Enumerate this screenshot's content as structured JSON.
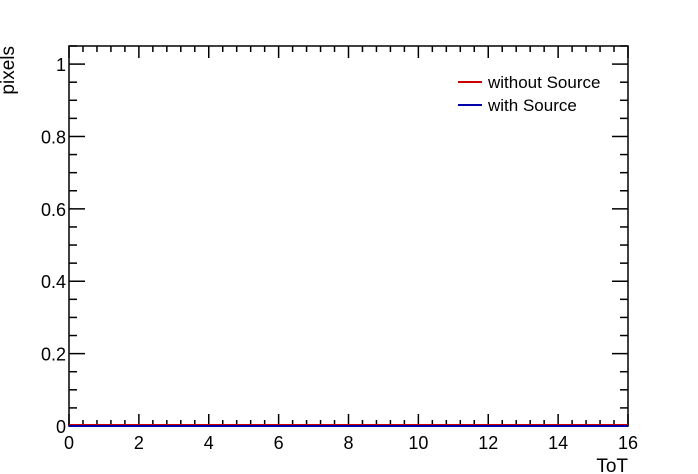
{
  "chart_data": {
    "type": "line",
    "title": "",
    "xlabel": "ToT",
    "ylabel": "pixels",
    "xlim": [
      0,
      16
    ],
    "ylim": [
      0,
      1.05
    ],
    "x_ticks": [
      0,
      2,
      4,
      6,
      8,
      10,
      12,
      14,
      16
    ],
    "x_tick_labels": [
      "0",
      "2",
      "4",
      "6",
      "8",
      "10",
      "12",
      "14",
      "16"
    ],
    "y_ticks": [
      0,
      0.2,
      0.4,
      0.6,
      0.8,
      1
    ],
    "y_tick_labels": [
      "0",
      "0.2",
      "0.4",
      "0.6",
      "0.8",
      "1"
    ],
    "grid": false,
    "legend_position": "top-right",
    "series": [
      {
        "name": "without Source",
        "color": "#cc0000",
        "x": [
          0,
          16
        ],
        "y": [
          0,
          0
        ]
      },
      {
        "name": "with Source",
        "color": "#0000aa",
        "x": [
          0,
          16
        ],
        "y": [
          0,
          0
        ]
      }
    ]
  }
}
